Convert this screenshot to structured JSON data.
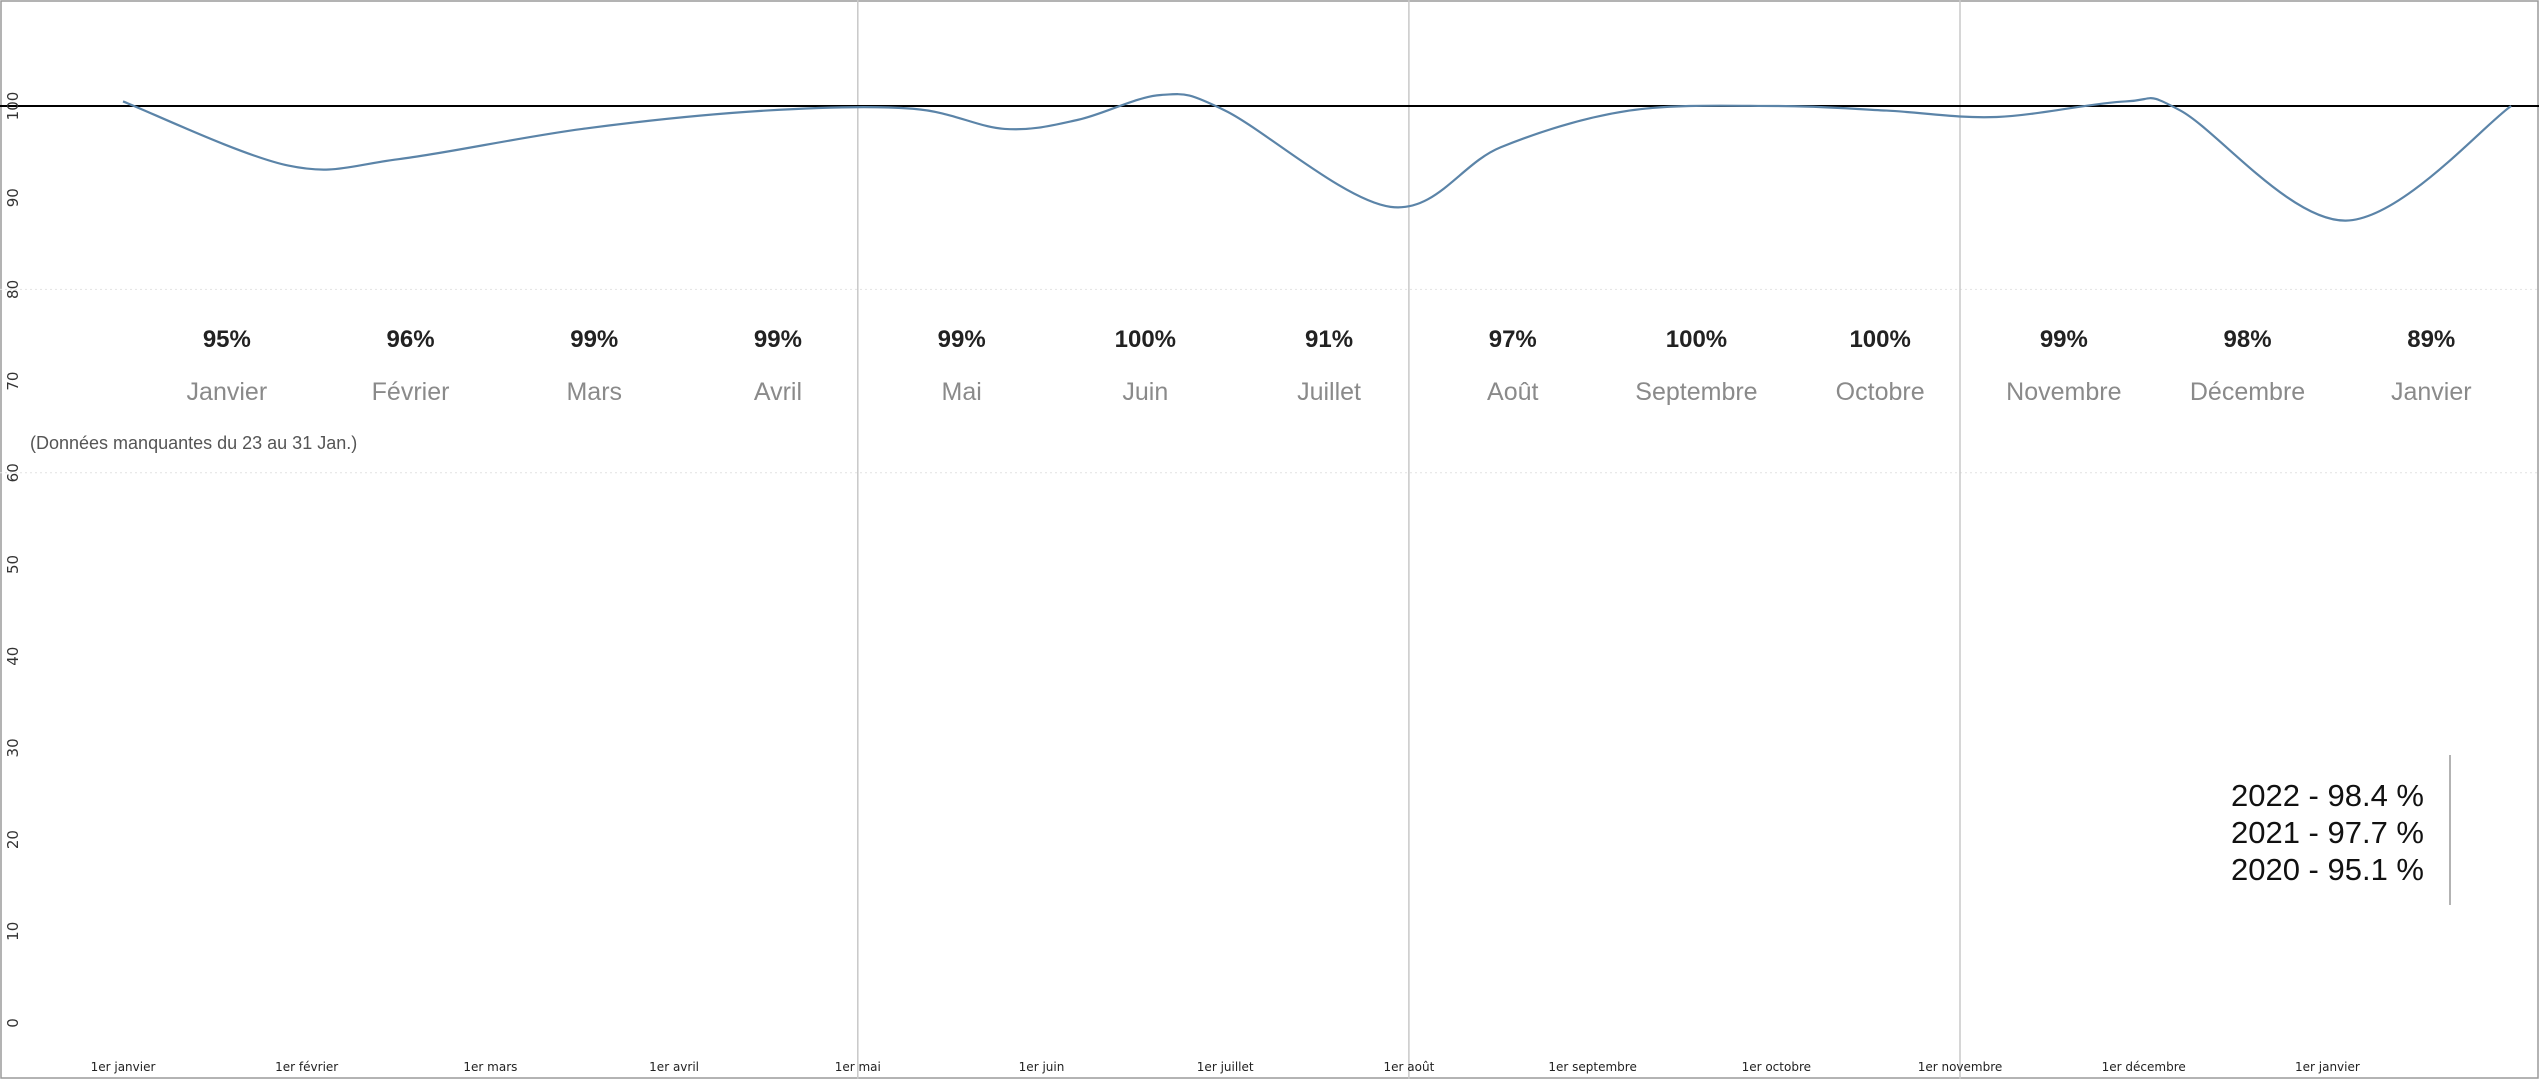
{
  "chart_data": {
    "type": "line",
    "title": "",
    "xlabel": "",
    "ylabel": "",
    "ylim": [
      0,
      130
    ],
    "yticks": [
      0,
      10,
      20,
      30,
      40,
      50,
      60,
      70,
      80,
      90,
      100
    ],
    "reference_line": 100,
    "x_range": [
      0,
      13
    ],
    "x_ticks": [
      {
        "x": 0,
        "label": "1er janvier"
      },
      {
        "x": 1,
        "label": "1er février"
      },
      {
        "x": 2,
        "label": "1er mars"
      },
      {
        "x": 3,
        "label": "1er avril"
      },
      {
        "x": 4,
        "label": "1er mai"
      },
      {
        "x": 5,
        "label": "1er juin"
      },
      {
        "x": 6,
        "label": "1er juillet"
      },
      {
        "x": 7,
        "label": "1er août"
      },
      {
        "x": 8,
        "label": "1er septembre"
      },
      {
        "x": 9,
        "label": "1er octobre"
      },
      {
        "x": 10,
        "label": "1er novembre"
      },
      {
        "x": 11,
        "label": "1er décembre"
      },
      {
        "x": 12,
        "label": "1er janvier"
      }
    ],
    "quarter_lines_x": [
      4,
      7,
      10
    ],
    "series": [
      {
        "color": "#5b84a8",
        "points": [
          {
            "x": 0,
            "y": 100.5
          },
          {
            "x": 0.9,
            "y": 93.5
          },
          {
            "x": 1.5,
            "y": 94.2
          },
          {
            "x": 2.5,
            "y": 97.5
          },
          {
            "x": 3.5,
            "y": 99.5
          },
          {
            "x": 4.3,
            "y": 99.7
          },
          {
            "x": 4.8,
            "y": 97.5
          },
          {
            "x": 5.2,
            "y": 98.5
          },
          {
            "x": 5.65,
            "y": 101.2
          },
          {
            "x": 6.0,
            "y": 99.5
          },
          {
            "x": 6.9,
            "y": 89.0
          },
          {
            "x": 7.5,
            "y": 95.5
          },
          {
            "x": 8.2,
            "y": 99.5
          },
          {
            "x": 9.0,
            "y": 100.0
          },
          {
            "x": 9.6,
            "y": 99.5
          },
          {
            "x": 10.2,
            "y": 98.8
          },
          {
            "x": 10.9,
            "y": 100.5
          },
          {
            "x": 11.2,
            "y": 99.5
          },
          {
            "x": 12.1,
            "y": 87.5
          },
          {
            "x": 13.0,
            "y": 100.0
          }
        ]
      }
    ],
    "monthly_labels": [
      {
        "x": 0.5,
        "percent": "95%",
        "month": "Janvier"
      },
      {
        "x": 1.5,
        "percent": "96%",
        "month": "Février"
      },
      {
        "x": 2.5,
        "percent": "99%",
        "month": "Mars"
      },
      {
        "x": 3.5,
        "percent": "99%",
        "month": "Avril"
      },
      {
        "x": 4.5,
        "percent": "99%",
        "month": "Mai"
      },
      {
        "x": 5.5,
        "percent": "100%",
        "month": "Juin"
      },
      {
        "x": 6.5,
        "percent": "91%",
        "month": "Juillet"
      },
      {
        "x": 7.5,
        "percent": "97%",
        "month": "Août"
      },
      {
        "x": 8.5,
        "percent": "100%",
        "month": "Septembre"
      },
      {
        "x": 9.5,
        "percent": "100%",
        "month": "Octobre"
      },
      {
        "x": 10.5,
        "percent": "99%",
        "month": "Novembre"
      },
      {
        "x": 11.5,
        "percent": "98%",
        "month": "Décembre"
      },
      {
        "x": 12.5,
        "percent": "89%",
        "month": "Janvier"
      }
    ],
    "annotation": "(Données manquantes du 23 au 31 Jan.)",
    "summary": [
      "2022 - 98.4 %",
      "2021 - 97.7 %",
      "2020 - 95.1 %"
    ],
    "colors": {
      "line": "#5b84a8",
      "reference": "#000000",
      "quarter_lines": "#c8c8c8",
      "grid": "#e2e2e2"
    }
  }
}
